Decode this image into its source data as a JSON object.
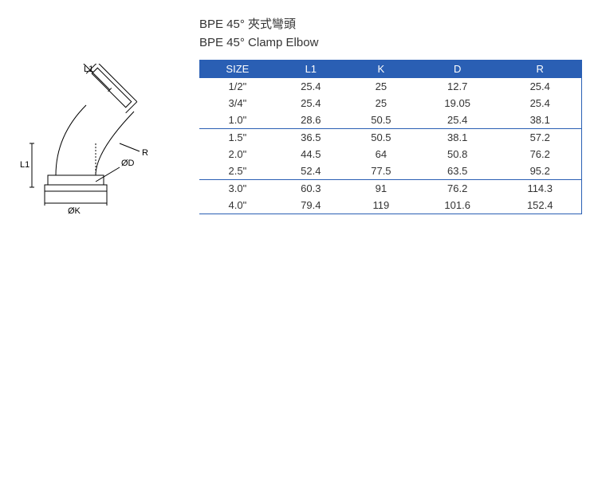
{
  "titles": {
    "line1": "BPE 45° 夾式彎頭",
    "line2": "BPE 45° Clamp  Elbow"
  },
  "table": {
    "header_bg": "#2a5fb4",
    "header_color": "#ffffff",
    "columns": [
      "SIZE",
      "L1",
      "K",
      "D",
      "R"
    ],
    "rows": [
      {
        "size": "1/2\"",
        "l1": "25.4",
        "k": "25",
        "d": "12.7",
        "r": "25.4",
        "group_end": false
      },
      {
        "size": "3/4\"",
        "l1": "25.4",
        "k": "25",
        "d": "19.05",
        "r": "25.4",
        "group_end": false
      },
      {
        "size": "1.0\"",
        "l1": "28.6",
        "k": "50.5",
        "d": "25.4",
        "r": "38.1",
        "group_end": true
      },
      {
        "size": "1.5\"",
        "l1": "36.5",
        "k": "50.5",
        "d": "38.1",
        "r": "57.2",
        "group_end": false
      },
      {
        "size": "2.0\"",
        "l1": "44.5",
        "k": "64",
        "d": "50.8",
        "r": "76.2",
        "group_end": false
      },
      {
        "size": "2.5\"",
        "l1": "52.4",
        "k": "77.5",
        "d": "63.5",
        "r": "95.2",
        "group_end": true
      },
      {
        "size": "3.0\"",
        "l1": "60.3",
        "k": "91",
        "d": "76.2",
        "r": "114.3",
        "group_end": false
      },
      {
        "size": "4.0\"",
        "l1": "79.4",
        "k": "119",
        "d": "101.6",
        "r": "152.4",
        "group_end": false
      }
    ]
  },
  "diagram": {
    "labels": {
      "l1_top": "L1",
      "l1_left": "L1",
      "r": "R",
      "od": "ØD",
      "ok": "ØK"
    },
    "stroke": "#000000"
  }
}
